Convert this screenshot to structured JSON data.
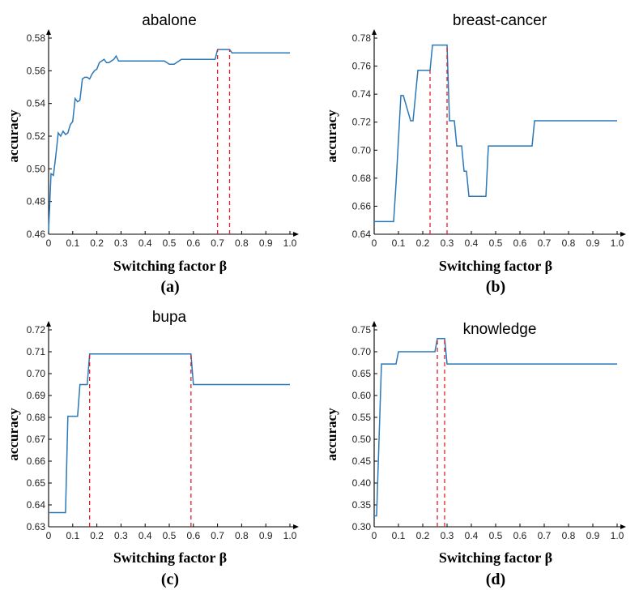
{
  "chart_data": [
    {
      "type": "line",
      "title": "abalone",
      "panel_label": "(a)",
      "xlabel": "Switching factor β",
      "ylabel": "accuracy",
      "xlim": [
        0,
        1
      ],
      "ylim": [
        0.46,
        0.58
      ],
      "x_ticks": [
        "0",
        "0.1",
        "0.2",
        "0.3",
        "0.4",
        "0.5",
        "0.6",
        "0.7",
        "0.8",
        "0.9",
        "1.0"
      ],
      "y_ticks": [
        "0.46",
        "0.48",
        "0.50",
        "0.52",
        "0.54",
        "0.56",
        "0.58"
      ],
      "color": "#2b78b8",
      "marker_color": "#e0202a",
      "highlight_x": [
        0.7,
        0.75
      ],
      "series": [
        {
          "name": "accuracy",
          "x": [
            0,
            0.01,
            0.02,
            0.03,
            0.04,
            0.05,
            0.06,
            0.07,
            0.08,
            0.09,
            0.1,
            0.11,
            0.12,
            0.13,
            0.14,
            0.15,
            0.16,
            0.17,
            0.18,
            0.19,
            0.2,
            0.21,
            0.22,
            0.23,
            0.24,
            0.25,
            0.26,
            0.27,
            0.28,
            0.29,
            0.3,
            0.31,
            0.32,
            0.35,
            0.4,
            0.45,
            0.48,
            0.5,
            0.52,
            0.55,
            0.6,
            0.65,
            0.69,
            0.7,
            0.72,
            0.75,
            0.76,
            0.8,
            0.9,
            1.0
          ],
          "y": [
            0.462,
            0.497,
            0.496,
            0.508,
            0.522,
            0.52,
            0.523,
            0.521,
            0.522,
            0.527,
            0.529,
            0.543,
            0.541,
            0.542,
            0.555,
            0.556,
            0.556,
            0.555,
            0.558,
            0.56,
            0.561,
            0.565,
            0.566,
            0.567,
            0.565,
            0.565,
            0.566,
            0.567,
            0.569,
            0.566,
            0.566,
            0.566,
            0.566,
            0.566,
            0.566,
            0.566,
            0.566,
            0.564,
            0.564,
            0.567,
            0.567,
            0.567,
            0.567,
            0.573,
            0.573,
            0.573,
            0.571,
            0.571,
            0.571,
            0.571
          ]
        }
      ]
    },
    {
      "type": "line",
      "title": "breast-cancer",
      "panel_label": "(b)",
      "xlabel": "Switching factor β",
      "ylabel": "accuracy",
      "xlim": [
        0,
        1
      ],
      "ylim": [
        0.64,
        0.78
      ],
      "x_ticks": [
        "0",
        "0.1",
        "0.2",
        "0.3",
        "0.4",
        "0.5",
        "0.6",
        "0.7",
        "0.8",
        "0.9",
        "1.0"
      ],
      "y_ticks": [
        "0.64",
        "0.66",
        "0.68",
        "0.70",
        "0.72",
        "0.74",
        "0.76",
        "0.78"
      ],
      "color": "#2b78b8",
      "marker_color": "#e0202a",
      "highlight_x": [
        0.23,
        0.3
      ],
      "series": [
        {
          "name": "accuracy",
          "x": [
            0,
            0.08,
            0.09,
            0.11,
            0.12,
            0.15,
            0.16,
            0.18,
            0.19,
            0.23,
            0.24,
            0.3,
            0.31,
            0.33,
            0.34,
            0.36,
            0.37,
            0.38,
            0.39,
            0.4,
            0.46,
            0.47,
            0.65,
            0.66,
            1.0
          ],
          "y": [
            0.649,
            0.649,
            0.676,
            0.739,
            0.739,
            0.721,
            0.721,
            0.757,
            0.757,
            0.757,
            0.775,
            0.775,
            0.721,
            0.721,
            0.703,
            0.703,
            0.685,
            0.685,
            0.667,
            0.667,
            0.667,
            0.703,
            0.703,
            0.721,
            0.721
          ]
        }
      ]
    },
    {
      "type": "line",
      "title": "bupa",
      "panel_label": "(c)",
      "xlabel": "Switching factor β",
      "ylabel": "accuracy",
      "xlim": [
        0,
        1
      ],
      "ylim": [
        0.63,
        0.72
      ],
      "x_ticks": [
        "0",
        "0.1",
        "0.2",
        "0.3",
        "0.4",
        "0.5",
        "0.6",
        "0.7",
        "0.8",
        "0.9",
        "1.0"
      ],
      "y_ticks": [
        "0.63",
        "0.64",
        "0.65",
        "0.66",
        "0.67",
        "0.68",
        "0.69",
        "0.70",
        "0.71",
        "0.72"
      ],
      "color": "#2b78b8",
      "marker_color": "#e0202a",
      "highlight_x": [
        0.17,
        0.59
      ],
      "series": [
        {
          "name": "accuracy",
          "x": [
            0,
            0.07,
            0.08,
            0.12,
            0.13,
            0.16,
            0.17,
            0.59,
            0.6,
            1.0
          ],
          "y": [
            0.6365,
            0.6365,
            0.6805,
            0.6805,
            0.695,
            0.695,
            0.709,
            0.709,
            0.695,
            0.695
          ]
        }
      ]
    },
    {
      "type": "line",
      "title": "knowledge",
      "panel_label": "(d)",
      "xlabel": "Switching factor β",
      "ylabel": "accuracy",
      "xlim": [
        0,
        1
      ],
      "ylim": [
        0.3,
        0.75
      ],
      "x_ticks": [
        "0",
        "0.1",
        "0.2",
        "0.3",
        "0.4",
        "0.5",
        "0.6",
        "0.7",
        "0.8",
        "0.9",
        "1.0"
      ],
      "y_ticks": [
        "0.30",
        "0.35",
        "0.40",
        "0.45",
        "0.50",
        "0.55",
        "0.60",
        "0.65",
        "0.70",
        "0.75"
      ],
      "color": "#2b78b8",
      "marker_color": "#e0202a",
      "highlight_x": [
        0.26,
        0.29
      ],
      "series": [
        {
          "name": "accuracy",
          "x": [
            0,
            0.01,
            0.03,
            0.09,
            0.1,
            0.25,
            0.26,
            0.29,
            0.3,
            1.0
          ],
          "y": [
            0.325,
            0.325,
            0.672,
            0.672,
            0.7,
            0.7,
            0.73,
            0.73,
            0.672,
            0.672
          ]
        }
      ]
    }
  ]
}
